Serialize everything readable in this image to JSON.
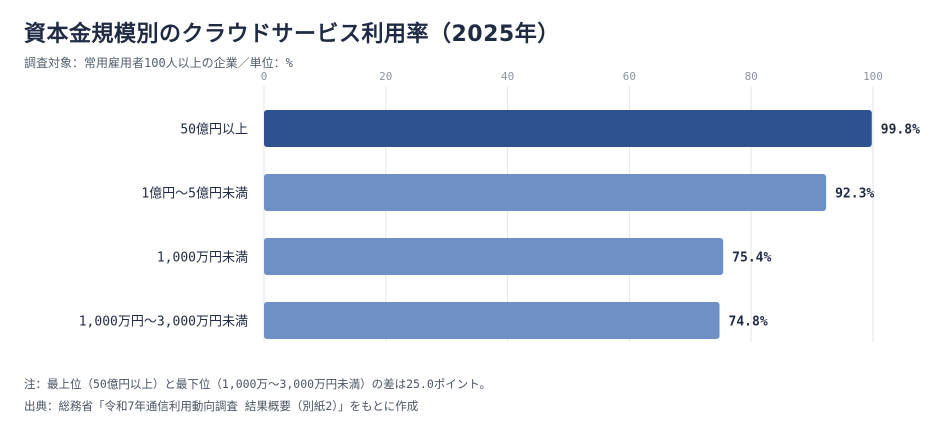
{
  "title": "資本金規模別のクラウドサービス利用率（2025年）",
  "subtitle": "調査対象：常用雇用者100人以上の企業／単位：%",
  "note": "注：最上位（50億円以上）と最下位（1,000万～3,000万円未満）の差は25.0ポイント。",
  "source": "出典：総務省「令和7年通信利用動向調査 結果概要（別紙2）」をもとに作成",
  "colors": {
    "highlight": "#2e5190",
    "bar": "#6e90c5",
    "grid": "#e3e6ea",
    "axis_text": "#8a93a0",
    "label_text": "#1f2a44"
  },
  "chart_data": {
    "type": "bar",
    "orientation": "horizontal",
    "categories": [
      "50億円以上",
      "1億円～5億円未満",
      "1,000万円未満",
      "1,000万円～3,000万円未満"
    ],
    "values": [
      99.8,
      92.3,
      75.4,
      74.8
    ],
    "value_labels": [
      "99.8%",
      "92.3%",
      "75.4%",
      "74.8%"
    ],
    "highlight_index": 0,
    "xlim": [
      0,
      100
    ],
    "xticks": [
      0,
      20,
      40,
      60,
      80,
      100
    ],
    "x_axis_position": "top",
    "grid": true,
    "legend": false
  }
}
